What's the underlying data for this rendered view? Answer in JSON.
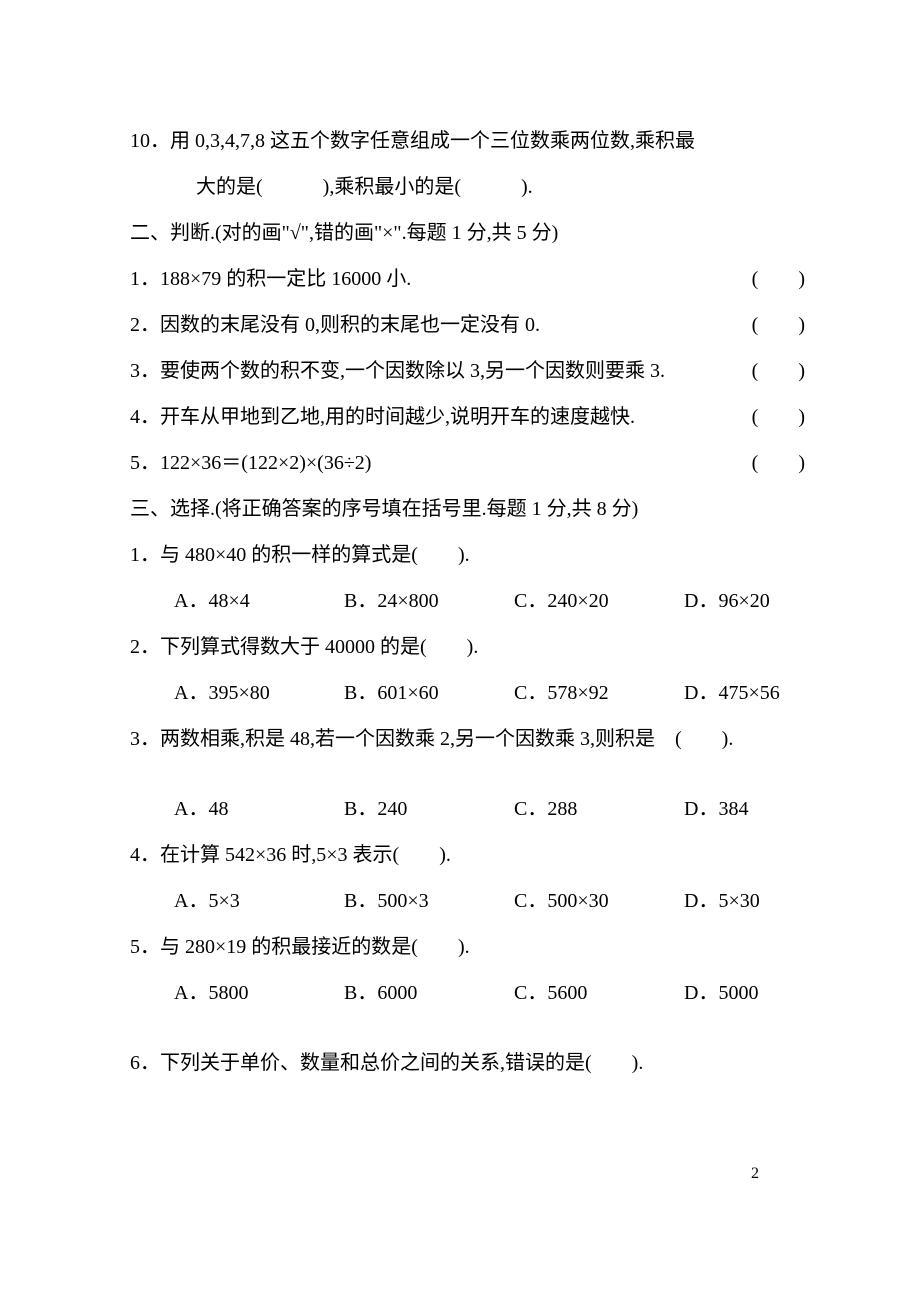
{
  "q10": {
    "num": "10．",
    "line1": "用 0,3,4,7,8 这五个数字任意组成一个三位数乘两位数,乘积最",
    "line2": "大的是(　　　),乘积最小的是(　　　)."
  },
  "section2": {
    "heading": "二、判断.(对的画\"√\",错的画\"×\".每题 1 分,共 5 分)",
    "items": [
      {
        "num": "1．",
        "text": "188×79 的积一定比 16000 小."
      },
      {
        "num": "2．",
        "text": "因数的末尾没有 0,则积的末尾也一定没有 0."
      },
      {
        "num": "3．",
        "text": "要使两个数的积不变,一个因数除以 3,另一个因数则要乘 3."
      },
      {
        "num": "4．",
        "text": "开车从甲地到乙地,用的时间越少,说明开车的速度越快."
      },
      {
        "num": "5．",
        "text": "122×36＝(122×2)×(36÷2)"
      }
    ],
    "paren": "(　　)"
  },
  "section3": {
    "heading": "三、选择.(将正确答案的序号填在括号里.每题 1 分,共 8 分)",
    "q1": {
      "stem": "1．与 480×40 的积一样的算式是(　　).",
      "opts": {
        "A": "A．48×4",
        "B": "B．24×800",
        "C": "C．240×20",
        "D": "D．96×20"
      }
    },
    "q2": {
      "stem": "2．下列算式得数大于 40000 的是(　　).",
      "opts": {
        "A": "A．395×80",
        "B": "B．601×60",
        "C": "C．578×92",
        "D": "D．475×56"
      }
    },
    "q3": {
      "stem": "3．两数相乘,积是 48,若一个因数乘 2,另一个因数乘 3,则积是　(　　).",
      "opts": {
        "A": "A．48",
        "B": "B．240",
        "C": "C．288",
        "D": "D．384"
      }
    },
    "q4": {
      "stem": "4．在计算 542×36 时,5×3 表示(　　).",
      "opts": {
        "A": "A．5×3",
        "B": "B．500×3",
        "C": "C．500×30",
        "D": "D．5×30"
      }
    },
    "q5": {
      "stem": "5．与 280×19 的积最接近的数是(　　).",
      "opts": {
        "A": "A．5800",
        "B": "B．6000",
        "C": "C．5600",
        "D": "D．5000"
      }
    },
    "q6": {
      "stem": "6．下列关于单价、数量和总价之间的关系,错误的是(　　)."
    }
  },
  "pageNumber": "2"
}
